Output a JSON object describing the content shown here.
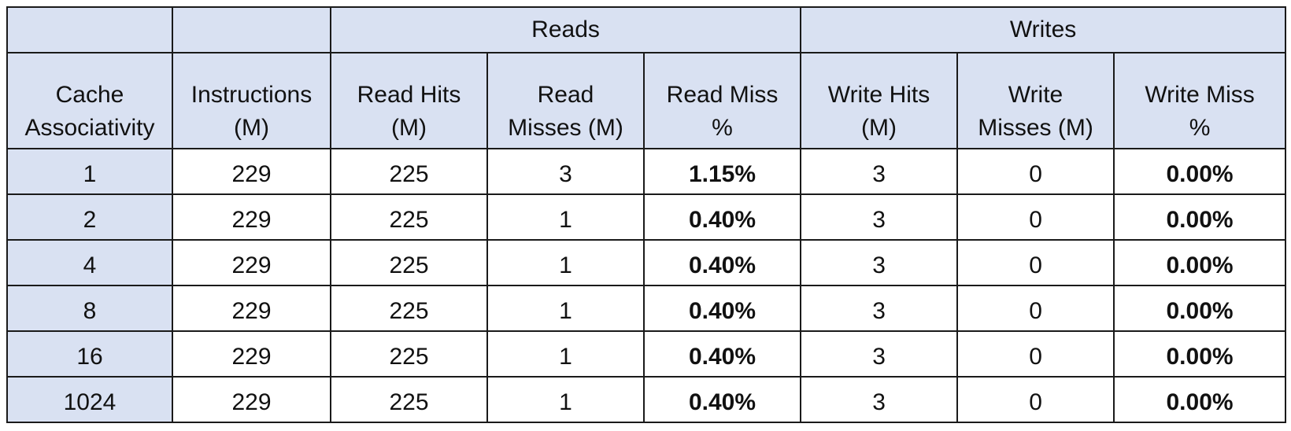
{
  "chart_data": {
    "type": "table",
    "group_headers": [
      "",
      "",
      "Reads",
      "Writes"
    ],
    "columns": [
      "Cache\nAssociativity",
      "Instructions\n(M)",
      "Read Hits\n(M)",
      "Read\nMisses (M)",
      "Read Miss\n%",
      "Write Hits\n(M)",
      "Write\nMisses (M)",
      "Write Miss\n%"
    ],
    "rows": [
      [
        "1",
        "229",
        "225",
        "3",
        "1.15%",
        "3",
        "0",
        "0.00%"
      ],
      [
        "2",
        "229",
        "225",
        "1",
        "0.40%",
        "3",
        "0",
        "0.00%"
      ],
      [
        "4",
        "229",
        "225",
        "1",
        "0.40%",
        "3",
        "0",
        "0.00%"
      ],
      [
        "8",
        "229",
        "225",
        "1",
        "0.40%",
        "3",
        "0",
        "0.00%"
      ],
      [
        "16",
        "229",
        "225",
        "1",
        "0.40%",
        "3",
        "0",
        "0.00%"
      ],
      [
        "1024",
        "229",
        "225",
        "1",
        "0.40%",
        "3",
        "0",
        "0.00%"
      ]
    ],
    "colors": {
      "header_fill": "#d9e1f2",
      "cell_fill": "#ffffff",
      "border": "#1a1a1a"
    }
  }
}
